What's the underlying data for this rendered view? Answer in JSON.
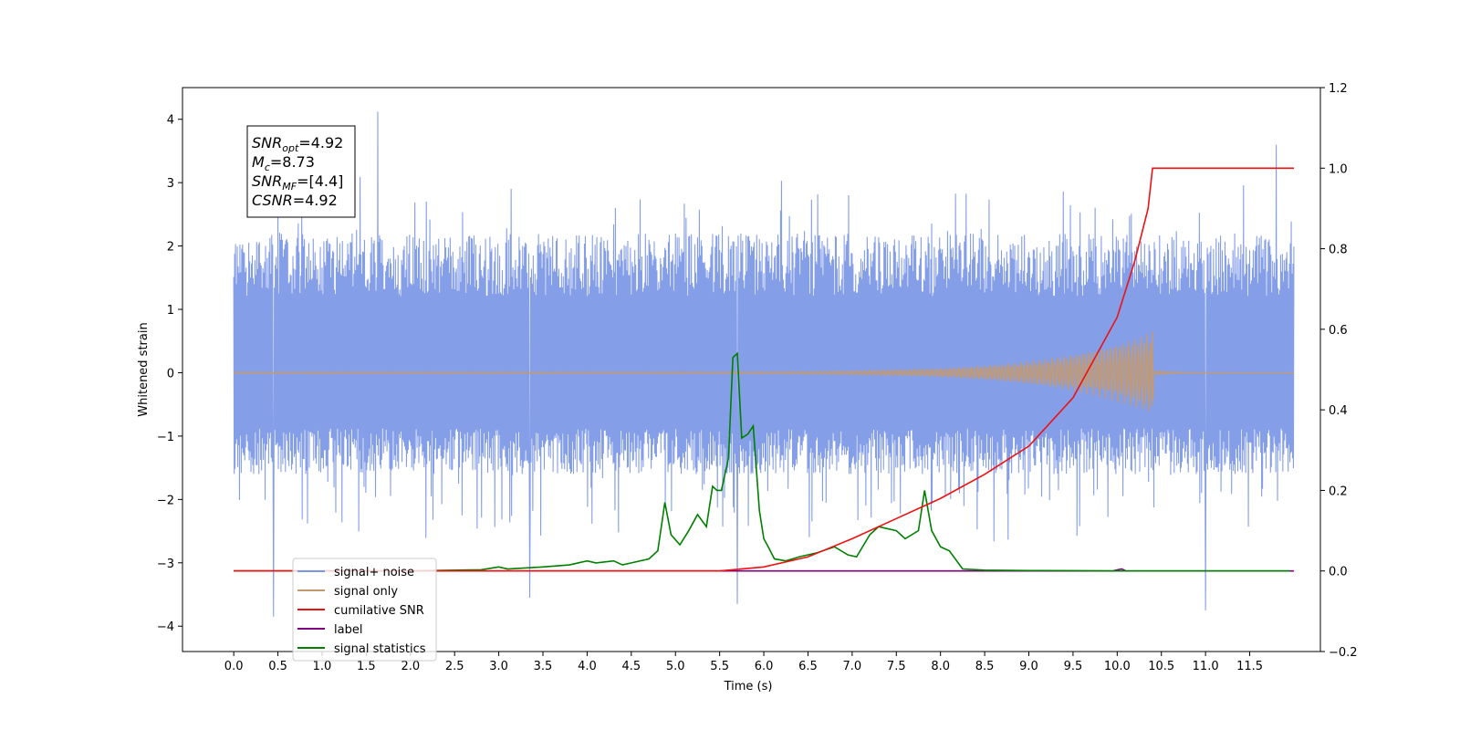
{
  "chart_data": {
    "type": "line",
    "xlabel": "Time (s)",
    "ylabel_left": "Whitened strain",
    "ylabel_right": "",
    "xlim": [
      -0.58,
      12.3
    ],
    "ylim_left": [
      -4.4,
      4.5
    ],
    "ylim_right": [
      -0.2,
      1.2
    ],
    "x_ticks": [
      "0.0",
      "0.5",
      "1.0",
      "1.5",
      "2.0",
      "2.5",
      "3.0",
      "3.5",
      "4.0",
      "4.5",
      "5.0",
      "5.5",
      "6.0",
      "6.5",
      "7.0",
      "7.5",
      "8.0",
      "8.5",
      "9.0",
      "9.5",
      "10.0",
      "10.5",
      "11.0",
      "11.5"
    ],
    "y_ticks_left": [
      "4",
      "3",
      "2",
      "1",
      "0",
      "−1",
      "−2",
      "−3",
      "−4"
    ],
    "y_ticks_right": [
      "1.2",
      "1.0",
      "0.8",
      "0.6",
      "0.4",
      "0.2",
      "0.0",
      "−0.2"
    ],
    "grid": false,
    "legend_placement": "lower-left",
    "annotation": {
      "lines": [
        {
          "base": "SNR",
          "sub": "opt",
          "value": "=4.92"
        },
        {
          "base": "M",
          "sub": "c",
          "value": "=8.73"
        },
        {
          "base": "SNR",
          "sub": "MF",
          "value": "=[4.4]"
        },
        {
          "base": "CSNR",
          "sub": "",
          "value": "=4.92"
        }
      ]
    },
    "series": [
      {
        "name": "signal+ noise",
        "color": "#7b96e6",
        "axis": "left",
        "kind": "noise band",
        "x_range": [
          0.0,
          12.0
        ],
        "typical_range": [
          -1.6,
          2.2
        ],
        "extremes": [
          [
            1.63,
            4.12
          ],
          [
            0.45,
            -3.85
          ],
          [
            11.0,
            -3.75
          ],
          [
            5.7,
            -3.65
          ],
          [
            3.35,
            -3.55
          ],
          [
            11.8,
            3.6
          ]
        ]
      },
      {
        "name": "signal only",
        "color": "#c59a6e",
        "axis": "left",
        "kind": "chirp",
        "x_range": [
          0.0,
          12.0
        ],
        "merger_time": 10.4,
        "merger_amplitude": 0.65
      },
      {
        "name": "cumilative SNR",
        "color": "#ee1111",
        "axis": "right",
        "x": [
          0.0,
          5.0,
          5.5,
          6.0,
          6.5,
          7.0,
          7.5,
          8.0,
          8.5,
          9.0,
          9.5,
          10.0,
          10.2,
          10.35,
          10.4,
          12.0
        ],
        "values": [
          0.0,
          0.0,
          0.0,
          0.01,
          0.035,
          0.08,
          0.13,
          0.18,
          0.24,
          0.31,
          0.43,
          0.63,
          0.77,
          0.9,
          1.0,
          1.0
        ]
      },
      {
        "name": "label",
        "color": "#800080",
        "axis": "right",
        "x": [
          0.0,
          9.95,
          10.05,
          10.1,
          12.0
        ],
        "values": [
          0.0,
          0.0,
          0.005,
          0.0,
          0.0
        ]
      },
      {
        "name": "signal statistics",
        "color": "#008000",
        "axis": "right",
        "x": [
          0.0,
          2.0,
          2.8,
          3.0,
          3.1,
          3.5,
          3.8,
          4.0,
          4.1,
          4.3,
          4.4,
          4.5,
          4.7,
          4.8,
          4.88,
          4.95,
          5.05,
          5.15,
          5.25,
          5.35,
          5.42,
          5.47,
          5.52,
          5.6,
          5.65,
          5.7,
          5.75,
          5.82,
          5.88,
          5.95,
          6.0,
          6.05,
          6.12,
          6.25,
          6.4,
          6.6,
          6.8,
          6.95,
          7.05,
          7.2,
          7.3,
          7.5,
          7.6,
          7.75,
          7.82,
          7.9,
          8.0,
          8.1,
          8.25,
          8.5,
          9.0,
          10.0,
          11.0,
          11.95
        ],
        "values": [
          0.0,
          0.0,
          0.003,
          0.01,
          0.005,
          0.01,
          0.015,
          0.025,
          0.02,
          0.025,
          0.015,
          0.02,
          0.03,
          0.05,
          0.17,
          0.09,
          0.065,
          0.1,
          0.14,
          0.11,
          0.21,
          0.2,
          0.2,
          0.28,
          0.53,
          0.54,
          0.33,
          0.34,
          0.36,
          0.15,
          0.08,
          0.06,
          0.03,
          0.025,
          0.035,
          0.045,
          0.06,
          0.04,
          0.035,
          0.09,
          0.11,
          0.1,
          0.08,
          0.1,
          0.2,
          0.1,
          0.06,
          0.05,
          0.005,
          0.002,
          0.001,
          0.0,
          0.0,
          0.0
        ]
      }
    ]
  }
}
